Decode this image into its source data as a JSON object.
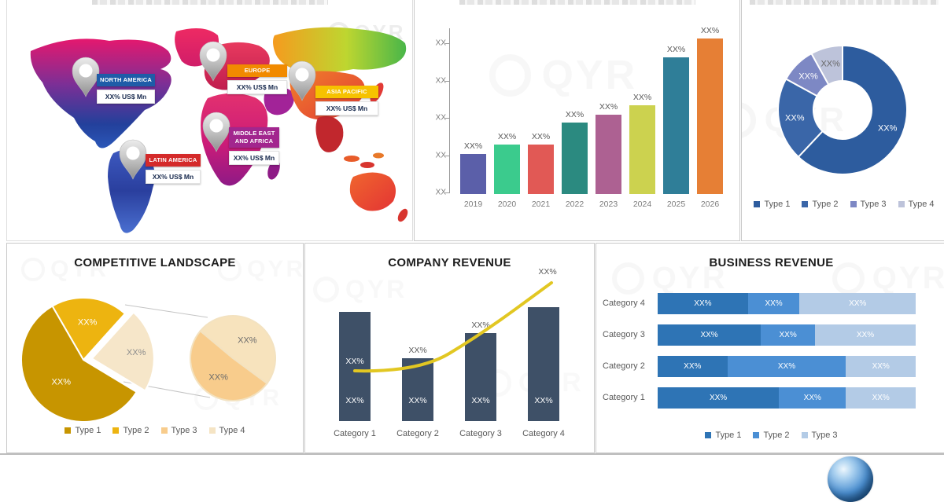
{
  "watermark": {
    "text": "QYR"
  },
  "chart_data": [
    {
      "id": "regional-market-map",
      "type": "map",
      "title_clipped": true,
      "regions": [
        {
          "name": "NORTH AMERICA",
          "value": "XX% US$ Mn",
          "header_color": "#1e5ca8"
        },
        {
          "name": "EUROPE",
          "value": "XX% US$ Mn",
          "header_color": "#f18a00"
        },
        {
          "name": "ASIA PACIFIC",
          "value": "XX% US$ Mn",
          "header_color": "#f6c200"
        },
        {
          "name": "MIDDLE EAST AND AFRICA",
          "value": "XX% US$ Mn",
          "header_color": "#a2268e"
        },
        {
          "name": "LATIN AMERICA",
          "value": "XX% US$ Mn",
          "header_color": "#d42a2a"
        }
      ]
    },
    {
      "id": "annual-market-trend",
      "type": "bar",
      "title_clipped": true,
      "categories": [
        "2019",
        "2020",
        "2021",
        "2022",
        "2023",
        "2024",
        "2025",
        "2026"
      ],
      "bar_labels": [
        "XX%",
        "XX%",
        "XX%",
        "XX%",
        "XX%",
        "XX%",
        "XX%",
        "XX%"
      ],
      "relative_heights": [
        0.26,
        0.32,
        0.32,
        0.46,
        0.51,
        0.57,
        0.88,
        1.0
      ],
      "colors": [
        "#5b5fa9",
        "#3bcb8d",
        "#e15955",
        "#2b8a80",
        "#ad6192",
        "#ccd24f",
        "#2f7e98",
        "#e67f35"
      ],
      "y_ticks": [
        "XX",
        "XX",
        "XX",
        "XX",
        "XX"
      ],
      "grid": false,
      "ylim_note": "axis labeled with placeholder XX values"
    },
    {
      "id": "market-share-by-type",
      "type": "pie",
      "donut": true,
      "title_clipped": true,
      "labels": [
        "Type 1",
        "Type 2",
        "Type 3",
        "Type 4"
      ],
      "values": [
        62,
        21,
        9,
        8
      ],
      "slice_labels": [
        "XX%",
        "XX%",
        "XX%",
        "XX%"
      ],
      "colors": [
        "#2d5c9e",
        "#3a66a8",
        "#7d88c4",
        "#bdc3da"
      ],
      "slice_label_colors": [
        "#ffffff",
        "#ffffff",
        "#ffffff",
        "#666666"
      ],
      "legend": [
        "Type 1",
        "Type 2",
        "Type 3",
        "Type 4"
      ],
      "legend_position": "bottom"
    },
    {
      "id": "competitive-landscape",
      "type": "pie",
      "title": "COMPETITIVE LANDSCAPE",
      "pie_of_pie": true,
      "main_start_angle_deg": -30,
      "main_slices": [
        {
          "series": "Type 2",
          "value": 20,
          "label": "XX%",
          "color": "#edb410",
          "label_color": "#ffffff"
        },
        {
          "series": "Type 3 + Type 4 (exploded)",
          "value": 22,
          "label": "XX%",
          "color": "#f6e6c9",
          "label_color": "#8c8c8c",
          "exploded": true
        },
        {
          "series": "Type 1",
          "value": 58,
          "label": "XX%",
          "color": "#c79500",
          "label_color": "#ffffff"
        }
      ],
      "sub_start_angle_deg": -50,
      "sub_slices": [
        {
          "series": "Type 4",
          "value": 49,
          "label": "XX%",
          "color": "#f7e3bd",
          "label_color": "#6b6b6b"
        },
        {
          "series": "Type 3",
          "value": 51,
          "label": "XX%",
          "color": "#f8cc8c",
          "label_color": "#6b6b6b"
        }
      ],
      "legend": [
        {
          "label": "Type 1",
          "color": "#c79500"
        },
        {
          "label": "Type 2",
          "color": "#edb410"
        },
        {
          "label": "Type 3",
          "color": "#f8cc8c"
        },
        {
          "label": "Type 4",
          "color": "#f5e4c4"
        }
      ]
    },
    {
      "id": "company-revenue",
      "type": "bar",
      "title": "COMPANY REVENUE",
      "categories": [
        "Category 1",
        "Category 2",
        "Category 3",
        "Category 4"
      ],
      "bar_relative_heights": [
        0.615,
        0.354,
        0.496,
        0.642
      ],
      "bar_color": "#3e5067",
      "bottom_labels": [
        "XX%",
        "XX%",
        "XX%",
        "XX%"
      ],
      "top_labels": [
        "XX%",
        "XX%",
        "XX%",
        ""
      ],
      "top_label_inside": [
        true,
        false,
        false,
        false
      ],
      "line_series": {
        "name": "growth line",
        "color": "#e2c722",
        "relative_values": [
          0.283,
          0.274,
          0.487,
          0.779
        ],
        "end_label": "XX%"
      }
    },
    {
      "id": "business-revenue",
      "type": "bar",
      "stacked": true,
      "horizontal": true,
      "title": "BUSINESS REVENUE",
      "categories": [
        "Category 4",
        "Category 3",
        "Category 2",
        "Category 1"
      ],
      "series": [
        "Type 1",
        "Type 2",
        "Type 3"
      ],
      "values": [
        [
          35,
          20,
          45
        ],
        [
          40,
          21,
          39
        ],
        [
          27,
          46,
          27
        ],
        [
          47,
          26,
          27
        ]
      ],
      "segment_labels": [
        [
          "XX%",
          "XX%",
          "XX%"
        ],
        [
          "XX%",
          "XX%",
          "XX%"
        ],
        [
          "XX%",
          "XX%",
          "XX%"
        ],
        [
          "XX%",
          "XX%",
          "XX%"
        ]
      ],
      "colors": [
        "#2e74b5",
        "#4b8fd4",
        "#b3cbe6"
      ],
      "legend": [
        {
          "label": "Type 1",
          "color": "#2e74b5"
        },
        {
          "label": "Type 2",
          "color": "#4b8fd4"
        },
        {
          "label": "Type 3",
          "color": "#b3cbe6"
        }
      ]
    }
  ]
}
